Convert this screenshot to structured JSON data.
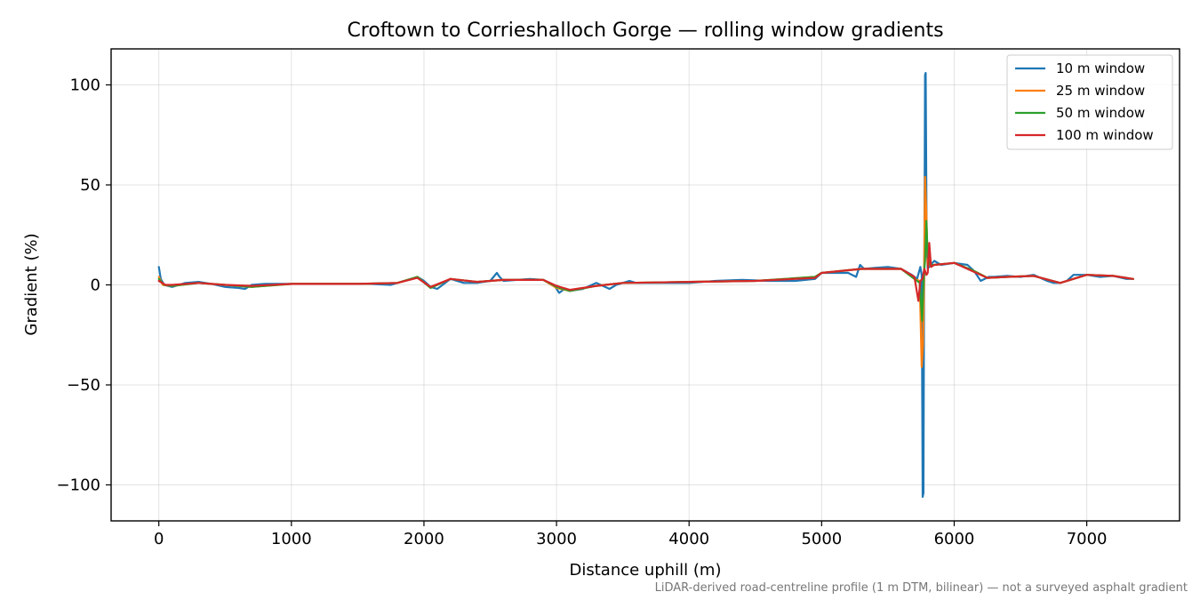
{
  "chart_data": {
    "type": "line",
    "title": "Croftown to Corrieshalloch Gorge — rolling window gradients",
    "xlabel": "Distance uphill (m)",
    "ylabel": "Gradient (%)",
    "xlim": [
      -360,
      7700
    ],
    "ylim": [
      -118,
      118
    ],
    "xticks": [
      0,
      1000,
      2000,
      3000,
      4000,
      5000,
      6000,
      7000
    ],
    "xtick_labels": [
      "0",
      "1000",
      "2000",
      "3000",
      "4000",
      "5000",
      "6000",
      "7000"
    ],
    "yticks": [
      100,
      50,
      0,
      -50,
      -100
    ],
    "ytick_labels": [
      "100",
      "50",
      "0",
      "−50",
      "−100"
    ],
    "grid": true,
    "legend_position": "top-right",
    "footnote": "LiDAR-derived road-centreline profile (1 m DTM, bilinear) — not a surveyed asphalt gradient",
    "series": [
      {
        "name": "10 m window",
        "color": "#1f77b4",
        "x": [
          0,
          15,
          40,
          100,
          200,
          300,
          400,
          500,
          600,
          650,
          700,
          800,
          900,
          1000,
          1200,
          1400,
          1600,
          1750,
          1850,
          1950,
          2000,
          2050,
          2100,
          2200,
          2300,
          2400,
          2500,
          2550,
          2570,
          2600,
          2700,
          2800,
          2900,
          2980,
          3020,
          3060,
          3100,
          3200,
          3300,
          3400,
          3450,
          3500,
          3550,
          3600,
          3700,
          3800,
          4000,
          4200,
          4400,
          4600,
          4800,
          4950,
          5000,
          5100,
          5200,
          5260,
          5290,
          5320,
          5400,
          5500,
          5600,
          5680,
          5720,
          5745,
          5755,
          5762,
          5768,
          5772,
          5775,
          5780,
          5785,
          5792,
          5800,
          5820,
          5850,
          5900,
          6000,
          6100,
          6150,
          6200,
          6230,
          6260,
          6300,
          6400,
          6500,
          6600,
          6700,
          6750,
          6800,
          6850,
          6900,
          7000,
          7100,
          7200,
          7300,
          7350
        ],
        "y": [
          9,
          3,
          0,
          -1,
          1,
          1.5,
          0.5,
          -1,
          -1.5,
          -2,
          0,
          0.5,
          0.5,
          0.5,
          0.5,
          0.5,
          0.5,
          0,
          2,
          4,
          2,
          -1,
          -2,
          3,
          1,
          1,
          2,
          6,
          4,
          2,
          2.5,
          3,
          2.5,
          0,
          -4,
          -2,
          -3,
          -2,
          1,
          -2,
          0,
          1,
          2,
          1,
          1,
          1,
          1,
          2,
          2.5,
          2,
          2,
          3,
          6,
          6,
          6,
          4,
          10,
          8,
          8.5,
          9,
          8,
          5,
          3,
          9,
          5,
          -106,
          -104,
          -10,
          15,
          105,
          106,
          20,
          8,
          10,
          12,
          10,
          11,
          10,
          7,
          2,
          3,
          4,
          4,
          4.5,
          4,
          5,
          2,
          1,
          1,
          2,
          5,
          5,
          4,
          4.5,
          3,
          3
        ]
      },
      {
        "name": "25 m window",
        "color": "#ff7f0e",
        "x": [
          0,
          30,
          100,
          300,
          500,
          700,
          1000,
          1500,
          1800,
          1950,
          2050,
          2200,
          2400,
          2600,
          2900,
          3000,
          3100,
          3300,
          3500,
          4000,
          4500,
          4950,
          5000,
          5300,
          5600,
          5700,
          5740,
          5755,
          5765,
          5772,
          5780,
          5790,
          5800,
          5850,
          6000,
          6150,
          6250,
          6400,
          6600,
          6800,
          7000,
          7200,
          7350
        ],
        "y": [
          4,
          0,
          -0.5,
          1,
          0,
          -1,
          0.5,
          0.5,
          1,
          4,
          -1.5,
          3,
          1.5,
          2.5,
          2.5,
          -1.5,
          -3,
          -0.5,
          1,
          1.5,
          2,
          4,
          6,
          8,
          8,
          3,
          2,
          -41,
          -30,
          0,
          54,
          35,
          10,
          10,
          11,
          7,
          3.5,
          4,
          4.5,
          1,
          5,
          4.5,
          3
        ]
      },
      {
        "name": "50 m window",
        "color": "#2ca02c",
        "x": [
          0,
          40,
          100,
          300,
          500,
          700,
          1000,
          1500,
          1800,
          1950,
          2050,
          2200,
          2400,
          2600,
          2900,
          3000,
          3100,
          3300,
          3500,
          4000,
          4500,
          4950,
          5000,
          5300,
          5600,
          5700,
          5740,
          5758,
          5770,
          5780,
          5790,
          5800,
          5820,
          5850,
          6000,
          6150,
          6250,
          6400,
          6600,
          6800,
          7000,
          7200,
          7350
        ],
        "y": [
          3,
          0,
          -0.5,
          1,
          0,
          -1,
          0.5,
          0.5,
          1,
          4,
          -1.5,
          3,
          1.5,
          2.5,
          2.5,
          -1,
          -3,
          -0.5,
          1,
          1.5,
          2,
          4,
          6,
          8,
          8,
          3,
          1,
          -18,
          4,
          12,
          32,
          14,
          10,
          10,
          11,
          7,
          3.5,
          4,
          4.5,
          1,
          5,
          4.5,
          3
        ]
      },
      {
        "name": "100 m window",
        "color": "#d62728",
        "x": [
          0,
          50,
          100,
          300,
          500,
          700,
          1000,
          1500,
          1800,
          1950,
          2050,
          2200,
          2400,
          2600,
          2900,
          3000,
          3100,
          3300,
          3500,
          4000,
          4500,
          4950,
          5000,
          5300,
          5600,
          5700,
          5730,
          5745,
          5760,
          5775,
          5790,
          5800,
          5812,
          5825,
          5850,
          6000,
          6150,
          6250,
          6400,
          6600,
          6800,
          7000,
          7200,
          7350
        ],
        "y": [
          2,
          0,
          0,
          1,
          0,
          -0.5,
          0.5,
          0.5,
          1,
          3.5,
          -1,
          3,
          1.5,
          2.5,
          2.5,
          -0.5,
          -2.5,
          -0.5,
          1,
          1.5,
          2,
          3.5,
          6,
          8,
          8,
          4,
          -8,
          2,
          3,
          8,
          5,
          6,
          21,
          9,
          10,
          11,
          6.5,
          3.5,
          4,
          4.5,
          1,
          5,
          4.5,
          3
        ]
      }
    ]
  }
}
